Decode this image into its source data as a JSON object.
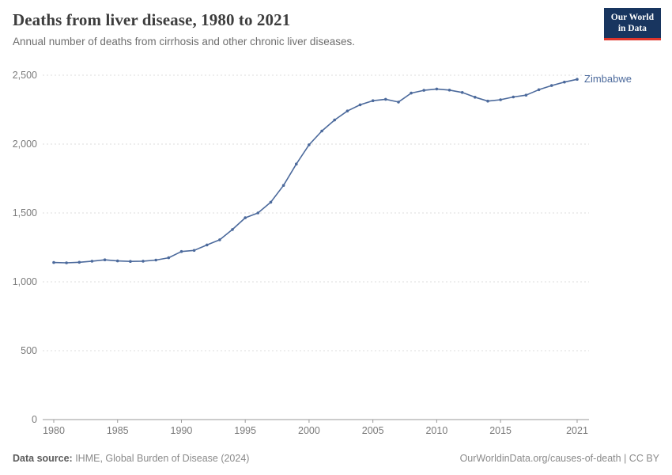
{
  "header": {
    "title": "Deaths from liver disease, 1980 to 2021",
    "subtitle": "Annual number of deaths from cirrhosis and other chronic liver diseases.",
    "logo": {
      "line1": "Our World",
      "line2": "in Data"
    }
  },
  "colors": {
    "series_blue": "#4c6a9c",
    "logo_navy": "#18355f",
    "logo_red": "#e0362c",
    "gridline": "#dcdcdc",
    "axis": "#999999",
    "tick_text": "#7a7a7a"
  },
  "chart_data": {
    "type": "line",
    "title": "Deaths from liver disease, 1980 to 2021",
    "subtitle": "Annual number of deaths from cirrhosis and other chronic liver diseases.",
    "xlabel": "",
    "ylabel": "",
    "xlim": [
      1980,
      2021
    ],
    "ylim": [
      0,
      2500
    ],
    "grid": "horizontal-dashed",
    "legend_position": "end-of-line-label",
    "yticks": [
      0,
      500,
      1000,
      1500,
      2000,
      2500
    ],
    "ytick_labels": [
      "0",
      "500",
      "1,000",
      "1,500",
      "2,000",
      "2,500"
    ],
    "xticks": [
      1980,
      1985,
      1990,
      1995,
      2000,
      2005,
      2010,
      2015,
      2021
    ],
    "series": [
      {
        "name": "Zimbabwe",
        "color": "#4c6a9c",
        "x": [
          1980,
          1981,
          1982,
          1983,
          1984,
          1985,
          1986,
          1987,
          1988,
          1989,
          1990,
          1991,
          1992,
          1993,
          1994,
          1995,
          1996,
          1997,
          1998,
          1999,
          2000,
          2001,
          2002,
          2003,
          2004,
          2005,
          2006,
          2007,
          2008,
          2009,
          2010,
          2011,
          2012,
          2013,
          2014,
          2015,
          2016,
          2017,
          2018,
          2019,
          2020,
          2021
        ],
        "values": [
          1140,
          1138,
          1142,
          1150,
          1160,
          1152,
          1148,
          1150,
          1158,
          1175,
          1220,
          1228,
          1268,
          1305,
          1380,
          1465,
          1500,
          1578,
          1700,
          1855,
          1995,
          2095,
          2175,
          2240,
          2285,
          2315,
          2325,
          2305,
          2370,
          2390,
          2400,
          2392,
          2375,
          2340,
          2312,
          2322,
          2342,
          2355,
          2395,
          2425,
          2450,
          2470
        ]
      }
    ]
  },
  "footer": {
    "source_label": "Data source:",
    "source_text": " IHME, Global Burden of Disease (2024)",
    "right_text": "OurWorldinData.org/causes-of-death | CC BY"
  }
}
